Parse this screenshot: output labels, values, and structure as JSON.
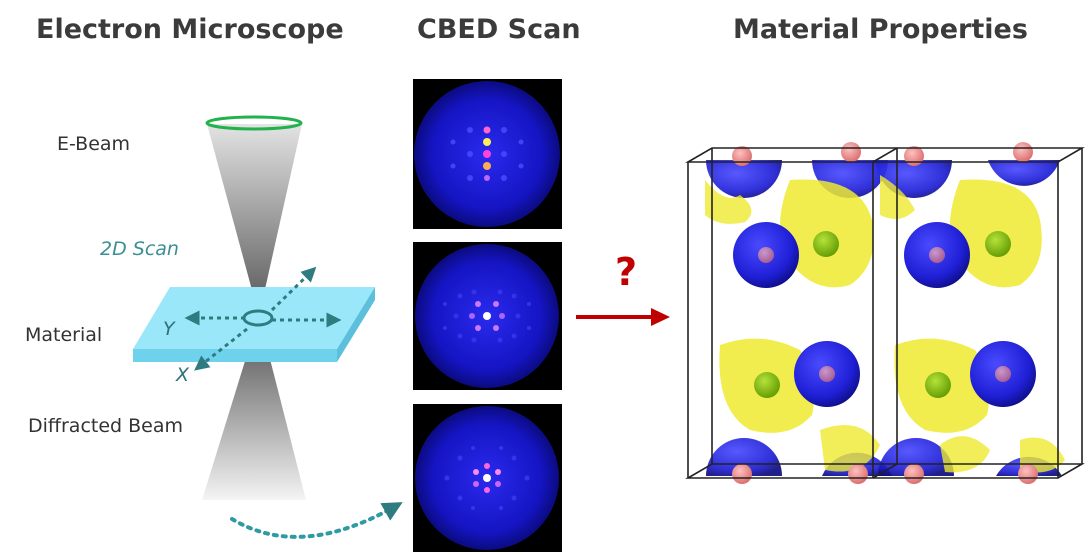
{
  "titles": {
    "microscope": "Electron Microscope",
    "cbed": "CBED Scan",
    "properties": "Material Properties"
  },
  "labels": {
    "ebeam": "E-Beam",
    "scan": "2D Scan",
    "material": "Material",
    "diffracted": "Diffracted Beam",
    "axis_y": "Y",
    "axis_x": "X",
    "question": "?"
  },
  "colors": {
    "beam_ring": "#22b24c",
    "material_slab": "#8fe5f8",
    "scan_arrows": "#2e7b80",
    "pattern_bg": "#1414c8",
    "main_arrow": "#c00000",
    "isosurface_yellow": "#f2ee3c",
    "isosurface_blue": "#2323d8",
    "atom_green": "#7ab800",
    "atom_pink": "#e88a8a"
  },
  "icons": [
    "beam-source-ring",
    "scan-arrows",
    "dotted-curve-arrow",
    "right-arrow"
  ]
}
